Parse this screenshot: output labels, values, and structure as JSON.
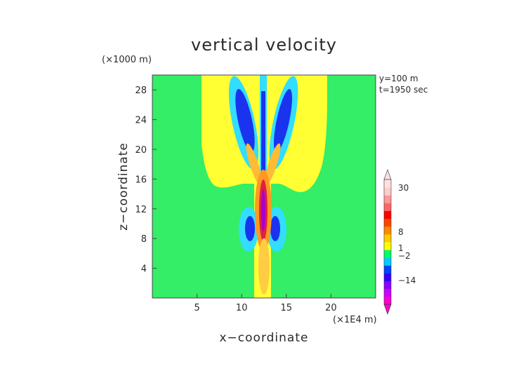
{
  "chart_data": {
    "type": "heatmap",
    "title": "vertical velocity",
    "xlabel": "x−coordinate",
    "ylabel": "z−coordinate",
    "x_unit": "(×1E4 m)",
    "y_unit": "(×1000 m)",
    "x_ticks": [
      5,
      10,
      15,
      20
    ],
    "y_ticks": [
      4,
      8,
      12,
      16,
      20,
      24,
      28
    ],
    "xlim": [
      0,
      25
    ],
    "ylim": [
      0,
      30
    ],
    "annotations": [
      "y=100 m",
      "t=1950 sec"
    ],
    "colorbar": {
      "labels": [
        {
          "text": "30",
          "value": 30
        },
        {
          "text": "8",
          "value": 8
        },
        {
          "text": "1",
          "value": 1
        },
        {
          "text": "−2",
          "value": -2
        },
        {
          "text": "−14",
          "value": -14
        }
      ],
      "colors": [
        "#ff00cc",
        "#cc00ff",
        "#8800ff",
        "#3300ff",
        "#0044ff",
        "#00ccff",
        "#00ff66",
        "#ffff00",
        "#ffcc00",
        "#ff8800",
        "#ff4400",
        "#ff0000",
        "#ff6666",
        "#ff9999",
        "#ffcccc",
        "#ffe0e0"
      ]
    },
    "background_value_color": "#33ee66",
    "grid": false,
    "legend_placement": "right"
  }
}
